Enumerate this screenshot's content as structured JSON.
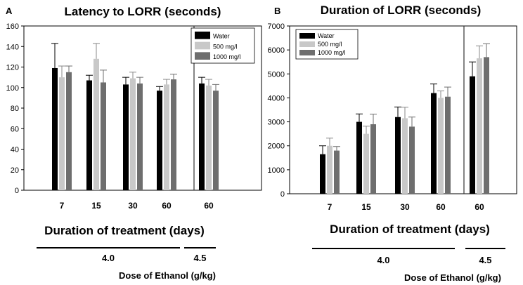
{
  "panels": [
    {
      "letter": "A",
      "chart_data": {
        "type": "bar",
        "title": "Latency to LORR (seconds)",
        "xlabel": "Duration of treatment (days)",
        "ylabel": "",
        "categories": [
          "7",
          "15",
          "30",
          "60",
          "60"
        ],
        "ylim": [
          0,
          160
        ],
        "yticks": [
          0,
          20,
          40,
          60,
          80,
          100,
          120,
          140,
          160
        ],
        "series": [
          {
            "name": "Water",
            "color": "#000000",
            "values": [
              119,
              107,
              103,
              97,
              104
            ],
            "errors": [
              24,
              5,
              7,
              4,
              6
            ]
          },
          {
            "name": "500 mg/l",
            "color": "#c8c8c8",
            "values": [
              110,
              128,
              109,
              103,
              102
            ],
            "errors": [
              11,
              15,
              6,
              5,
              6
            ]
          },
          {
            "name": "1000 mg/l",
            "color": "#6e6e6e",
            "values": [
              115,
              105,
              104,
              108,
              97
            ],
            "errors": [
              6,
              12,
              6,
              5,
              6
            ]
          }
        ],
        "divider_after_category": 3,
        "dose_groups": [
          {
            "label": "4.0",
            "from": 0,
            "to": 3
          },
          {
            "label": "4.5",
            "from": 4,
            "to": 4
          }
        ],
        "dose_label": "Dose of Ethanol (g/kg)",
        "legend_position": "top-right"
      }
    },
    {
      "letter": "B",
      "chart_data": {
        "type": "bar",
        "title": "Duration of LORR (seconds)",
        "xlabel": "Duration of treatment (days)",
        "ylabel": "",
        "categories": [
          "7",
          "15",
          "30",
          "60",
          "60"
        ],
        "ylim": [
          0,
          7000
        ],
        "yticks": [
          0,
          1000,
          2000,
          3000,
          4000,
          5000,
          6000,
          7000
        ],
        "series": [
          {
            "name": "Water",
            "color": "#000000",
            "values": [
              1650,
              3000,
              3200,
              4200,
              4900
            ],
            "errors": [
              350,
              330,
              420,
              380,
              600
            ]
          },
          {
            "name": "500 mg/l",
            "color": "#c8c8c8",
            "values": [
              2000,
              2500,
              3150,
              4000,
              5650
            ],
            "errors": [
              320,
              320,
              460,
              290,
              520
            ]
          },
          {
            "name": "1000 mg/l",
            "color": "#6e6e6e",
            "values": [
              1800,
              2900,
              2800,
              4050,
              5700
            ],
            "errors": [
              170,
              420,
              400,
              400,
              560
            ]
          }
        ],
        "divider_after_category": 3,
        "dose_groups": [
          {
            "label": "4.0",
            "from": 0,
            "to": 3
          },
          {
            "label": "4.5",
            "from": 4,
            "to": 4
          }
        ],
        "dose_label": "Dose of Ethanol (g/kg)",
        "legend_position": "top-left"
      }
    }
  ]
}
